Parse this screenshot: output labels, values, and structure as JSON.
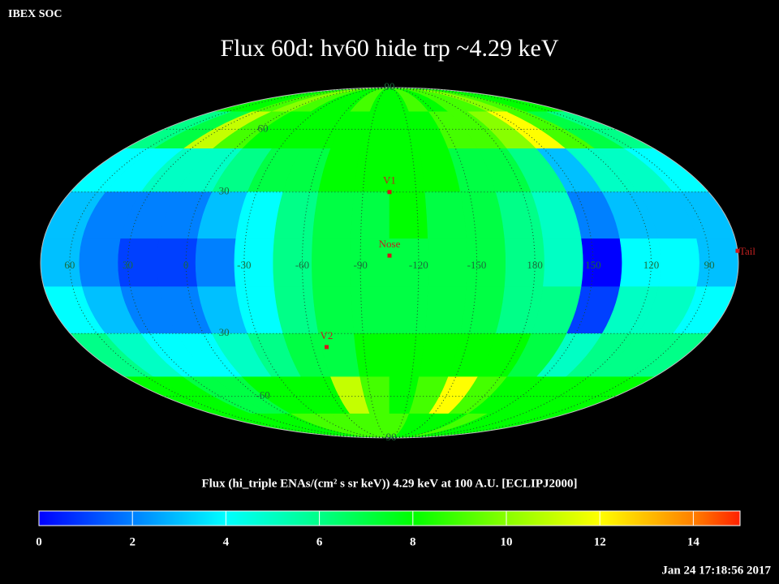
{
  "header": "IBEX SOC",
  "timestamp": "Jan 24 17:18:56 2017",
  "chart_data": {
    "type": "heatmap",
    "projection": "mollweide",
    "title": "Flux   60d: hv60 hide trp ~4.29 keV",
    "colorbar_label": "Flux (hi_triple ENAs/(cm² s sr keV))  4.29 keV at 100 A.U. [ECLIPJ2000]",
    "xlim": [
      75,
      -285
    ],
    "ylim": [
      -90,
      90
    ],
    "xticks": [
      60,
      30,
      0,
      -30,
      -60,
      -90,
      -120,
      -150,
      180,
      150,
      120,
      90
    ],
    "yticks": [
      90,
      60,
      30,
      {
        "value": -30,
        "label": "30"
      },
      -60,
      -90
    ],
    "clim": [
      0,
      15
    ],
    "cticks": [
      0,
      2,
      4,
      6,
      8,
      10,
      12,
      14
    ],
    "colormap": [
      [
        0,
        "#0000ff"
      ],
      [
        2,
        "#0080ff"
      ],
      [
        4,
        "#00ffff"
      ],
      [
        6,
        "#00ff88"
      ],
      [
        8,
        "#00ff00"
      ],
      [
        10,
        "#88ff00"
      ],
      [
        12,
        "#ffff00"
      ],
      [
        14,
        "#ff8000"
      ],
      [
        15,
        "#ff2000"
      ]
    ],
    "grid": true,
    "values": [
      [
        8,
        8,
        9,
        10,
        9,
        8,
        8,
        9,
        8,
        8,
        9,
        8,
        9,
        9,
        10,
        9,
        8,
        8
      ],
      [
        6,
        7,
        11,
        9,
        8,
        8,
        8,
        8,
        8,
        8,
        8,
        9,
        9,
        10,
        12,
        9,
        7,
        6
      ],
      [
        4,
        4,
        5,
        5,
        6,
        7,
        7,
        8,
        8,
        8,
        8,
        7,
        7,
        6,
        3,
        5,
        5,
        4
      ],
      [
        3,
        2,
        2,
        2,
        3,
        4,
        6,
        7,
        7,
        8,
        7,
        7,
        6,
        5,
        2,
        3,
        3,
        3
      ],
      [
        3,
        2,
        1,
        1,
        2,
        4,
        6,
        7,
        7,
        7,
        7,
        7,
        6,
        5,
        0,
        4,
        4,
        3
      ],
      [
        4,
        3,
        2,
        2,
        3,
        4,
        6,
        7,
        7,
        7,
        7,
        7,
        6,
        6,
        1,
        5,
        5,
        4
      ],
      [
        6,
        5,
        4,
        4,
        5,
        6,
        7,
        7,
        8,
        8,
        8,
        8,
        8,
        7,
        5,
        6,
        6,
        6
      ],
      [
        8,
        8,
        7,
        7,
        8,
        8,
        8,
        11,
        9,
        8,
        9,
        12,
        9,
        8,
        8,
        8,
        8,
        8
      ],
      [
        8,
        8,
        8,
        8,
        9,
        9,
        9,
        9,
        9,
        9,
        8,
        8,
        8,
        9,
        8,
        8,
        8,
        8
      ]
    ],
    "markers": [
      {
        "label": "V1",
        "lon": -105,
        "lat": 30
      },
      {
        "label": "Nose",
        "lon": -105,
        "lat": 3
      },
      {
        "label": "V2",
        "lon": -68,
        "lat": -36
      },
      {
        "label": "Tail",
        "lon": 75,
        "lat": 5
      }
    ]
  }
}
